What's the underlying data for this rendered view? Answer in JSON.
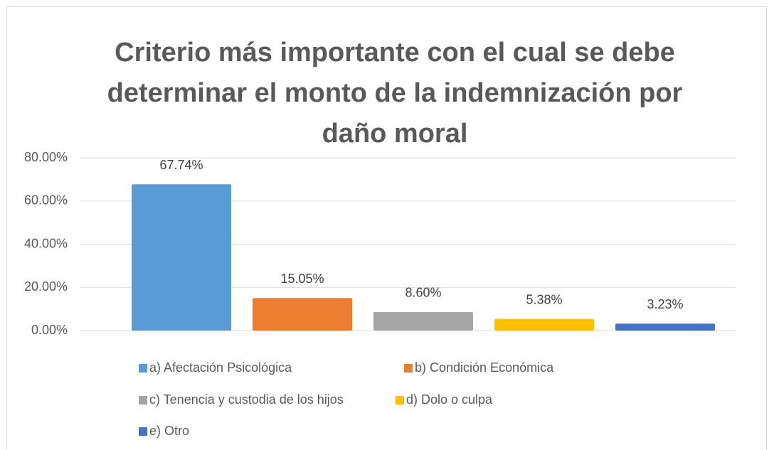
{
  "chart_data": {
    "type": "bar",
    "title": [
      "Criterio más importante con el cual se debe",
      "determinar el monto de la indemnización por",
      "daño moral"
    ],
    "categories": [
      "a) Afectación Psicológica",
      "b) Condición Económica",
      "c) Tenencia y custodia de los hijos",
      "d) Dolo o culpa",
      "e) Otro"
    ],
    "values": [
      67.74,
      15.05,
      8.6,
      5.38,
      3.23
    ],
    "value_labels": [
      "67.74%",
      "15.05%",
      "8.60%",
      "5.38%",
      "3.23%"
    ],
    "colors": [
      "#5b9bd5",
      "#ed7d31",
      "#a5a5a5",
      "#ffc000",
      "#4472c4"
    ],
    "ylim": [
      0,
      80
    ],
    "yticks": [
      {
        "value": 0,
        "label": "0.00%"
      },
      {
        "value": 20,
        "label": "20.00%"
      },
      {
        "value": 40,
        "label": "40.00%"
      },
      {
        "value": 60,
        "label": "60.00%"
      },
      {
        "value": 80,
        "label": "80.00%"
      }
    ],
    "grid": true,
    "legend": "bottom"
  }
}
